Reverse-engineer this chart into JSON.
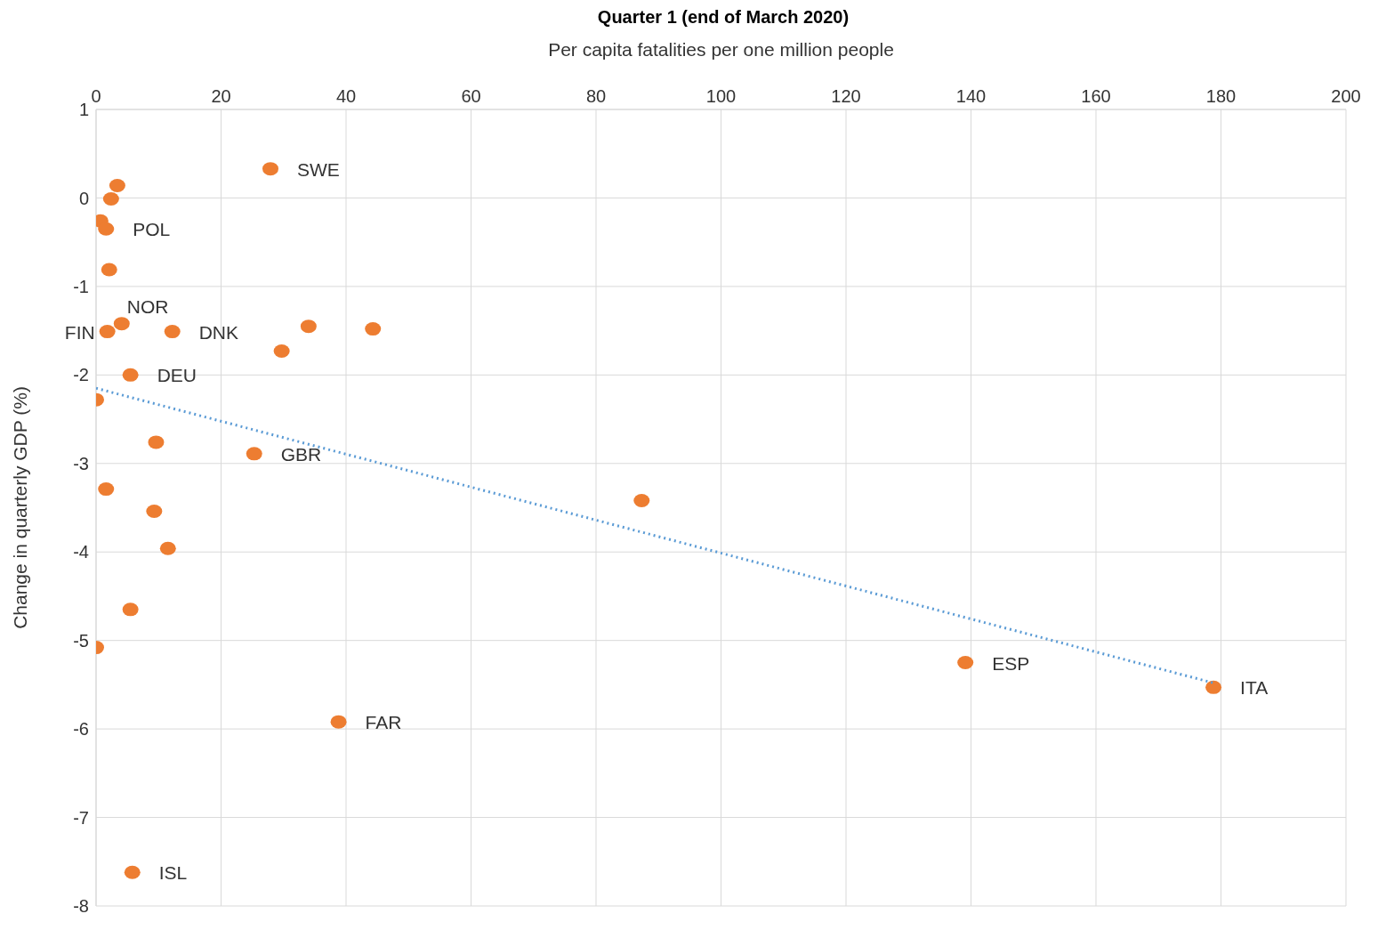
{
  "chart_data": {
    "type": "scatter",
    "title": "Quarter 1 (end of March 2020)",
    "xlabel": "Per capita fatalities per one million people",
    "ylabel": "Change in quarterly GDP (%)",
    "xlim": [
      0,
      200
    ],
    "xticks": [
      0,
      20,
      40,
      60,
      80,
      100,
      120,
      140,
      160,
      180,
      200
    ],
    "ylim": [
      -8,
      1
    ],
    "yticks": [
      -8,
      -7,
      -6,
      -5,
      -4,
      -3,
      -2,
      -1,
      0,
      1
    ],
    "grid": true,
    "legend": false,
    "series": [
      {
        "color": "#ed7d31",
        "marker": "circle",
        "x": [
          27.9,
          3.4,
          2.4,
          0.7,
          1.6,
          2.1,
          4.1,
          1.8,
          12.2,
          34.0,
          44.3,
          29.7,
          5.5,
          0,
          9.6,
          25.3,
          1.6,
          9.3,
          11.5,
          87.3,
          5.5,
          0,
          139.1,
          178.8,
          38.8,
          5.8
        ],
        "values": [
          0.33,
          0.14,
          -0.01,
          -0.26,
          -0.35,
          -0.81,
          -1.42,
          -1.51,
          -1.51,
          -1.45,
          -1.48,
          -1.73,
          -2.0,
          -2.28,
          -2.76,
          -2.89,
          -3.29,
          -3.54,
          -3.96,
          -3.42,
          -4.65,
          -5.08,
          -5.25,
          -5.53,
          -5.92,
          -7.62
        ]
      },
      {
        "type": "line",
        "color": "#5b9bd5",
        "line_style": "dotted",
        "marker": "none",
        "x": [
          0,
          178.8
        ],
        "values": [
          -2.15,
          -5.48
        ]
      }
    ],
    "annotations": [
      {
        "text": "SWE",
        "x": 27.9,
        "y": 0.33
      },
      {
        "text": "POL",
        "x": 1.6,
        "y": -0.35
      },
      {
        "text": "NOR",
        "x": 4.1,
        "y": -1.42
      },
      {
        "text": "FIN",
        "x": 1.8,
        "y": -1.51
      },
      {
        "text": "DNK",
        "x": 12.2,
        "y": -1.51
      },
      {
        "text": "DEU",
        "x": 5.5,
        "y": -2.0
      },
      {
        "text": "GBR",
        "x": 25.3,
        "y": -2.89
      },
      {
        "text": "ESP",
        "x": 139.1,
        "y": -5.25
      },
      {
        "text": "ITA",
        "x": 178.8,
        "y": -5.53
      },
      {
        "text": "FAR",
        "x": 38.8,
        "y": -5.92
      },
      {
        "text": "ISL",
        "x": 5.8,
        "y": -7.62
      }
    ]
  }
}
